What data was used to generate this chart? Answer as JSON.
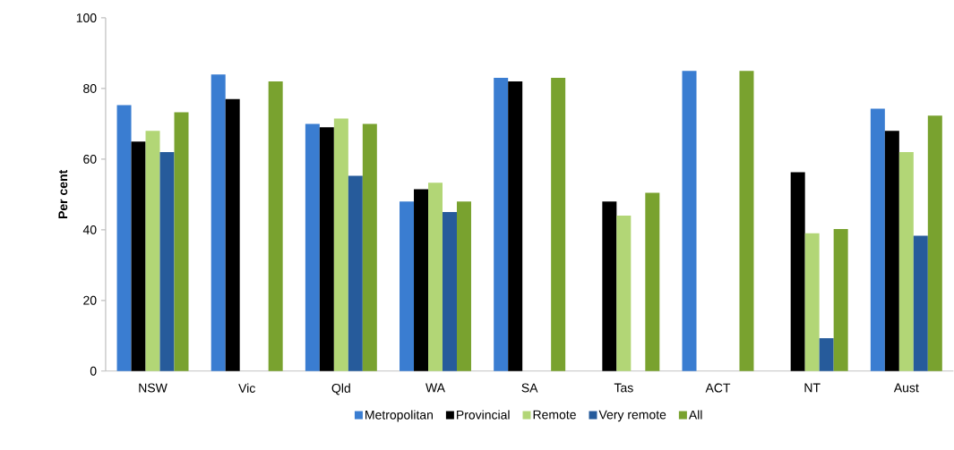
{
  "chart_data": {
    "type": "bar",
    "ylabel": "Per cent",
    "categories": [
      "NSW",
      "Vic",
      "Qld",
      "WA",
      "SA",
      "Tas",
      "ACT",
      "NT",
      "Aust"
    ],
    "series": [
      {
        "name": "Metropolitan",
        "color": "#3a7dd1",
        "values": [
          75.3,
          84,
          70,
          48,
          83,
          null,
          85,
          null,
          74.3
        ]
      },
      {
        "name": "Provincial",
        "color": "#000000",
        "values": [
          65,
          77,
          69,
          51.5,
          82,
          48,
          null,
          56.3,
          68
        ]
      },
      {
        "name": "Remote",
        "color": "#b2d676",
        "values": [
          68,
          null,
          71.5,
          53.3,
          null,
          44,
          null,
          39,
          62
        ]
      },
      {
        "name": "Very remote",
        "color": "#265b9b",
        "values": [
          62,
          null,
          55.3,
          45,
          null,
          null,
          null,
          9.3,
          38.3
        ]
      },
      {
        "name": "All",
        "color": "#79a22f",
        "values": [
          73.3,
          82,
          70,
          48,
          83,
          50.5,
          85,
          40.2,
          72.3
        ]
      }
    ],
    "ylim": [
      0,
      100
    ],
    "yticks": [
      0,
      20,
      40,
      60,
      80,
      100
    ],
    "grid": false,
    "legend": "bottom"
  }
}
